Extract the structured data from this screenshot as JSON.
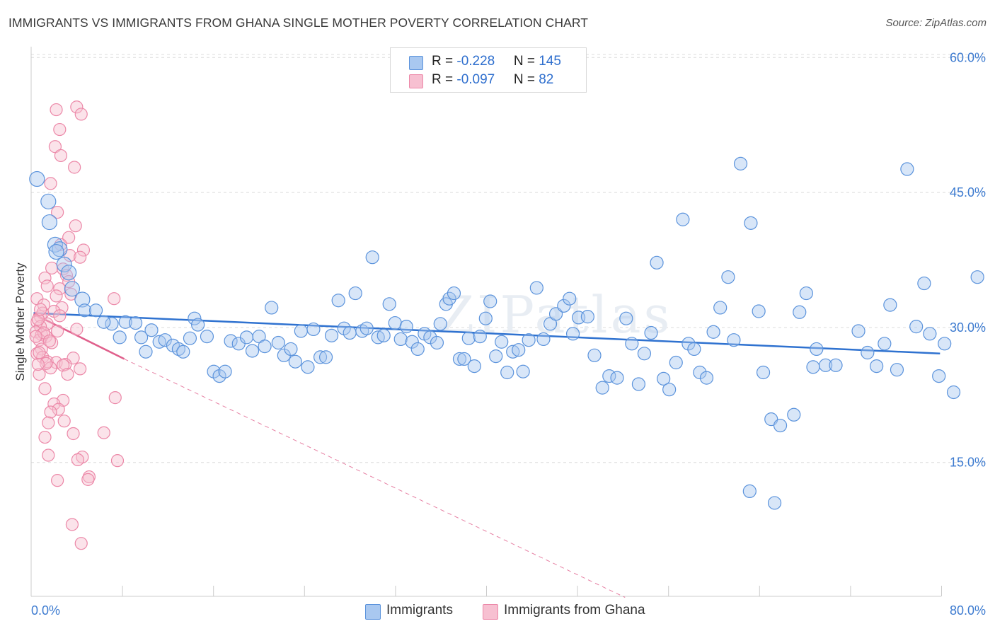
{
  "title": "IMMIGRANTS VS IMMIGRANTS FROM GHANA SINGLE MOTHER POVERTY CORRELATION CHART",
  "source": "Source: ZipAtlas.com",
  "legend": {
    "rows": [
      {
        "r_label": "R = ",
        "r_value": "-0.228",
        "n_label": "N = ",
        "n_value": "145",
        "color": "#8fb8ea"
      },
      {
        "r_label": "R = ",
        "r_value": "-0.097",
        "n_label": "N = ",
        "n_value": "82",
        "color": "#f4a8c0"
      }
    ]
  },
  "bottom_legend": {
    "series_a": "Immigrants",
    "series_b": "Immigrants from Ghana"
  },
  "colors": {
    "blue_fill": "#a9c8f0",
    "blue_stroke": "#5b93dc",
    "blue_line": "#2f72d0",
    "pink_fill": "#f7c0d1",
    "pink_stroke": "#ec88a8",
    "pink_line": "#e0608c",
    "tick_text": "#3d7bd0"
  },
  "chart_data": {
    "type": "scatter",
    "title": "IMMIGRANTS VS IMMIGRANTS FROM GHANA SINGLE MOTHER POVERTY CORRELATION CHART",
    "xlabel": "",
    "ylabel": "Single Mother Poverty",
    "xlim": [
      0,
      80
    ],
    "ylim": [
      0,
      62
    ],
    "x_tick_labels": [
      "0.0%",
      "80.0%"
    ],
    "y_ticks": [
      15,
      30,
      45,
      60
    ],
    "y_tick_labels": [
      "15.0%",
      "30.0%",
      "45.0%",
      "60.0%"
    ],
    "grid": "horizontal dashed",
    "watermark": "ZIPatlas",
    "series": [
      {
        "name": "Immigrants",
        "r": -0.228,
        "n": 145,
        "trend": {
          "x": [
            0,
            80
          ],
          "y": [
            31.6,
            27.1
          ]
        },
        "points": [
          [
            0.3,
            46.5
          ],
          [
            1.3,
            44.0
          ],
          [
            1.4,
            41.7
          ],
          [
            1.9,
            39.2
          ],
          [
            2.3,
            38.7
          ],
          [
            2.7,
            37.0
          ],
          [
            3.1,
            36.1
          ],
          [
            3.4,
            34.3
          ],
          [
            4.3,
            33.1
          ],
          [
            4.5,
            31.9
          ],
          [
            5.5,
            31.9
          ],
          [
            6.9,
            30.4
          ],
          [
            7.6,
            28.9
          ],
          [
            8.1,
            30.6
          ],
          [
            9.0,
            30.5
          ],
          [
            9.5,
            28.9
          ],
          [
            9.9,
            27.3
          ],
          [
            10.4,
            29.7
          ],
          [
            11.1,
            28.4
          ],
          [
            11.6,
            28.6
          ],
          [
            12.3,
            28.0
          ],
          [
            12.8,
            27.6
          ],
          [
            13.2,
            27.3
          ],
          [
            13.8,
            28.8
          ],
          [
            14.2,
            31.0
          ],
          [
            14.5,
            30.3
          ],
          [
            15.3,
            29.0
          ],
          [
            15.9,
            25.1
          ],
          [
            16.4,
            24.6
          ],
          [
            16.9,
            25.1
          ],
          [
            17.4,
            28.5
          ],
          [
            18.1,
            28.2
          ],
          [
            18.8,
            28.9
          ],
          [
            19.3,
            27.4
          ],
          [
            19.9,
            29.0
          ],
          [
            20.4,
            27.9
          ],
          [
            21.0,
            32.2
          ],
          [
            21.6,
            28.3
          ],
          [
            22.1,
            26.9
          ],
          [
            22.7,
            27.6
          ],
          [
            23.1,
            26.2
          ],
          [
            23.6,
            29.6
          ],
          [
            24.2,
            25.6
          ],
          [
            24.7,
            29.8
          ],
          [
            25.3,
            26.7
          ],
          [
            25.8,
            26.7
          ],
          [
            26.3,
            29.1
          ],
          [
            26.9,
            33.0
          ],
          [
            27.4,
            29.9
          ],
          [
            27.9,
            29.4
          ],
          [
            28.4,
            33.8
          ],
          [
            29.0,
            29.6
          ],
          [
            29.4,
            29.9
          ],
          [
            29.9,
            37.8
          ],
          [
            30.4,
            28.9
          ],
          [
            30.9,
            29.1
          ],
          [
            31.4,
            32.6
          ],
          [
            31.9,
            30.5
          ],
          [
            32.4,
            28.7
          ],
          [
            32.9,
            30.1
          ],
          [
            33.4,
            28.4
          ],
          [
            33.9,
            27.6
          ],
          [
            34.5,
            29.3
          ],
          [
            35.0,
            28.9
          ],
          [
            35.6,
            28.3
          ],
          [
            35.9,
            30.4
          ],
          [
            36.4,
            32.6
          ],
          [
            36.7,
            33.2
          ],
          [
            37.1,
            33.8
          ],
          [
            37.6,
            26.5
          ],
          [
            38.0,
            26.5
          ],
          [
            38.4,
            28.8
          ],
          [
            38.9,
            25.7
          ],
          [
            39.4,
            29.0
          ],
          [
            39.9,
            31.0
          ],
          [
            40.3,
            32.9
          ],
          [
            40.8,
            26.8
          ],
          [
            41.3,
            28.4
          ],
          [
            41.8,
            25.0
          ],
          [
            42.3,
            27.3
          ],
          [
            42.8,
            27.5
          ],
          [
            43.2,
            25.1
          ],
          [
            43.7,
            28.6
          ],
          [
            44.4,
            34.4
          ],
          [
            45.0,
            28.7
          ],
          [
            45.6,
            30.4
          ],
          [
            46.1,
            31.5
          ],
          [
            46.8,
            32.4
          ],
          [
            47.3,
            33.2
          ],
          [
            47.6,
            29.3
          ],
          [
            48.1,
            31.1
          ],
          [
            48.9,
            31.2
          ],
          [
            49.5,
            26.9
          ],
          [
            50.2,
            23.3
          ],
          [
            50.8,
            24.6
          ],
          [
            51.5,
            24.4
          ],
          [
            52.3,
            31.0
          ],
          [
            52.8,
            28.2
          ],
          [
            53.4,
            23.7
          ],
          [
            53.9,
            27.1
          ],
          [
            54.5,
            29.4
          ],
          [
            55.0,
            37.2
          ],
          [
            55.6,
            24.3
          ],
          [
            56.1,
            23.1
          ],
          [
            56.7,
            26.1
          ],
          [
            57.3,
            42.0
          ],
          [
            57.8,
            28.2
          ],
          [
            58.3,
            27.6
          ],
          [
            58.8,
            25.0
          ],
          [
            59.4,
            24.4
          ],
          [
            60.0,
            29.5
          ],
          [
            60.6,
            32.2
          ],
          [
            61.3,
            35.6
          ],
          [
            61.8,
            28.6
          ],
          [
            62.4,
            48.2
          ],
          [
            63.3,
            41.6
          ],
          [
            64.0,
            31.8
          ],
          [
            64.4,
            25.0
          ],
          [
            65.1,
            19.8
          ],
          [
            65.9,
            19.1
          ],
          [
            67.1,
            20.3
          ],
          [
            67.6,
            31.7
          ],
          [
            68.2,
            33.8
          ],
          [
            68.8,
            25.6
          ],
          [
            69.1,
            27.6
          ],
          [
            69.9,
            25.8
          ],
          [
            70.8,
            25.8
          ],
          [
            72.8,
            29.6
          ],
          [
            73.6,
            27.2
          ],
          [
            74.4,
            25.7
          ],
          [
            75.1,
            28.2
          ],
          [
            75.6,
            32.5
          ],
          [
            76.2,
            25.3
          ],
          [
            77.1,
            47.6
          ],
          [
            77.9,
            30.1
          ],
          [
            78.6,
            34.9
          ],
          [
            79.1,
            29.3
          ],
          [
            79.9,
            24.6
          ],
          [
            80.4,
            28.2
          ],
          [
            81.2,
            22.8
          ],
          [
            83.3,
            35.6
          ],
          [
            63.2,
            11.8
          ],
          [
            65.4,
            10.5
          ],
          [
            2.0,
            38.4
          ],
          [
            6.2,
            30.6
          ]
        ]
      },
      {
        "name": "Immigrants from Ghana",
        "r": -0.097,
        "n": 82,
        "trend": {
          "x": [
            0,
            8.0
          ],
          "y": [
            31.5,
            26.5
          ]
        },
        "trend_extension": {
          "x": [
            8.0,
            52.2
          ],
          "y": [
            26.5,
            0
          ]
        },
        "points": [
          [
            2.0,
            54.2
          ],
          [
            3.8,
            54.5
          ],
          [
            4.2,
            53.7
          ],
          [
            2.3,
            52.0
          ],
          [
            1.9,
            50.1
          ],
          [
            2.4,
            49.1
          ],
          [
            3.6,
            47.8
          ],
          [
            1.5,
            46.0
          ],
          [
            2.1,
            42.8
          ],
          [
            3.7,
            41.3
          ],
          [
            3.1,
            40.0
          ],
          [
            2.4,
            39.2
          ],
          [
            4.4,
            38.6
          ],
          [
            3.2,
            38.0
          ],
          [
            4.1,
            37.8
          ],
          [
            1.6,
            36.6
          ],
          [
            2.6,
            36.5
          ],
          [
            2.9,
            35.8
          ],
          [
            1.0,
            35.5
          ],
          [
            3.1,
            35.1
          ],
          [
            1.2,
            34.6
          ],
          [
            2.3,
            34.3
          ],
          [
            3.3,
            33.7
          ],
          [
            2.0,
            33.5
          ],
          [
            0.3,
            33.2
          ],
          [
            7.1,
            33.2
          ],
          [
            0.9,
            32.5
          ],
          [
            2.5,
            32.2
          ],
          [
            1.8,
            31.8
          ],
          [
            2.3,
            31.3
          ],
          [
            0.6,
            31.2
          ],
          [
            0.8,
            31.6
          ],
          [
            0.3,
            30.6
          ],
          [
            1.2,
            30.4
          ],
          [
            0.6,
            30.1
          ],
          [
            0.2,
            29.5
          ],
          [
            2.1,
            29.6
          ],
          [
            0.7,
            29.2
          ],
          [
            1.1,
            29.0
          ],
          [
            3.8,
            29.8
          ],
          [
            0.5,
            28.6
          ],
          [
            1.6,
            28.3
          ],
          [
            0.7,
            27.6
          ],
          [
            0.3,
            27.1
          ],
          [
            0.8,
            26.7
          ],
          [
            3.5,
            26.6
          ],
          [
            1.2,
            26.2
          ],
          [
            2.0,
            26.1
          ],
          [
            2.8,
            25.9
          ],
          [
            1.5,
            25.5
          ],
          [
            2.6,
            25.8
          ],
          [
            4.1,
            25.4
          ],
          [
            0.5,
            24.8
          ],
          [
            3.0,
            24.8
          ],
          [
            1.0,
            23.2
          ],
          [
            2.6,
            21.9
          ],
          [
            1.8,
            21.5
          ],
          [
            2.2,
            20.9
          ],
          [
            1.5,
            20.6
          ],
          [
            7.2,
            22.2
          ],
          [
            2.7,
            19.6
          ],
          [
            1.3,
            19.4
          ],
          [
            6.2,
            18.3
          ],
          [
            3.5,
            18.2
          ],
          [
            1.0,
            17.8
          ],
          [
            1.3,
            15.8
          ],
          [
            4.3,
            15.6
          ],
          [
            3.9,
            15.3
          ],
          [
            7.4,
            15.2
          ],
          [
            4.9,
            13.4
          ],
          [
            4.8,
            13.1
          ],
          [
            2.1,
            13.0
          ],
          [
            3.4,
            8.1
          ],
          [
            4.2,
            6.0
          ],
          [
            0.4,
            30.9
          ],
          [
            0.9,
            29.4
          ],
          [
            0.5,
            27.2
          ],
          [
            1.1,
            26.0
          ],
          [
            0.2,
            29.0
          ],
          [
            0.4,
            25.9
          ],
          [
            0.6,
            32.0
          ],
          [
            1.4,
            28.5
          ]
        ]
      }
    ]
  }
}
